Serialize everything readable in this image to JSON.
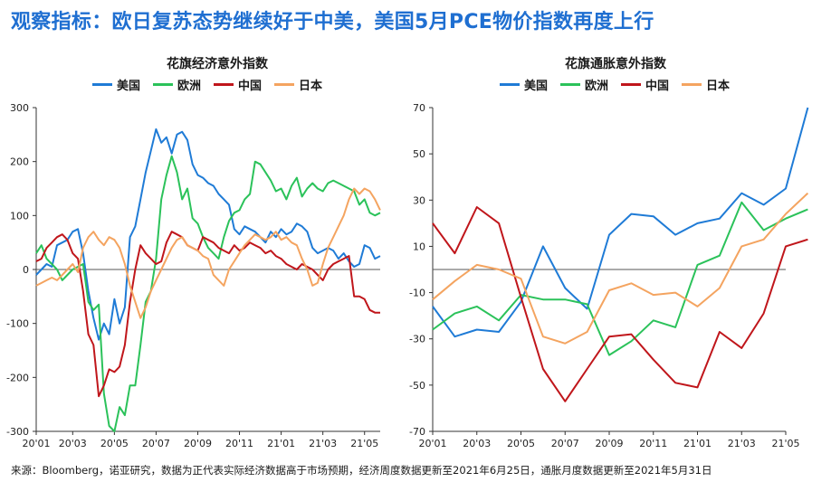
{
  "page": {
    "title": "观察指标：欧日复苏态势继续好于中美，美国5月PCE物价指数再度上行",
    "footnote": "来源：Bloomberg，诺亚研究，数据为正代表实际经济数据高于市场预期，经济周度数据更新至2021年6月25日，通胀月度数据更新至2021年5月31日"
  },
  "colors": {
    "us": "#1f7bd6",
    "eu": "#2bc25a",
    "cn": "#c0161b",
    "jp": "#f4a460"
  },
  "chart_data": [
    {
      "type": "line",
      "title": "花旗经济意外指数",
      "ylim": [
        -300,
        300
      ],
      "yticks": [
        300,
        200,
        100,
        0,
        -100,
        -200,
        -300
      ],
      "xlim": [
        0,
        66
      ],
      "xticks": [
        {
          "x": 0,
          "label": "20'01"
        },
        {
          "x": 7,
          "label": "20'03"
        },
        {
          "x": 15,
          "label": "20'05"
        },
        {
          "x": 23,
          "label": "20'07"
        },
        {
          "x": 31,
          "label": "20'09"
        },
        {
          "x": 39,
          "label": "20'11"
        },
        {
          "x": 47,
          "label": "21'01"
        },
        {
          "x": 55,
          "label": "21'03"
        },
        {
          "x": 63,
          "label": "21'05"
        }
      ],
      "x_unit_note": "weekly index since 2020-01",
      "series": [
        {
          "name": "美国",
          "key": "us",
          "x": [
            0,
            2,
            3,
            4,
            5,
            6,
            7,
            8,
            9,
            10,
            11,
            12,
            13,
            14,
            15,
            16,
            17,
            18,
            19,
            20,
            21,
            22,
            23,
            24,
            25,
            26,
            27,
            28,
            29,
            30,
            31,
            32,
            33,
            34,
            35,
            36,
            37,
            38,
            39,
            40,
            41,
            42,
            43,
            44,
            45,
            46,
            47,
            48,
            49,
            50,
            51,
            52,
            53,
            54,
            55,
            56,
            57,
            58,
            59,
            60,
            61,
            62,
            63,
            64,
            65,
            66
          ],
          "values": [
            -10,
            10,
            5,
            45,
            50,
            55,
            70,
            75,
            30,
            -40,
            -90,
            -130,
            -100,
            -120,
            -55,
            -100,
            -70,
            60,
            80,
            130,
            180,
            220,
            260,
            235,
            245,
            215,
            250,
            255,
            240,
            195,
            175,
            170,
            160,
            155,
            140,
            130,
            120,
            75,
            65,
            80,
            75,
            70,
            60,
            50,
            70,
            60,
            75,
            65,
            70,
            85,
            80,
            70,
            40,
            30,
            35,
            40,
            35,
            20,
            30,
            15,
            5,
            10,
            45,
            40,
            20,
            25
          ]
        },
        {
          "name": "欧洲",
          "key": "eu",
          "x": [
            0,
            1,
            2,
            3,
            4,
            5,
            6,
            7,
            8,
            9,
            10,
            11,
            12,
            13,
            14,
            15,
            16,
            17,
            18,
            19,
            20,
            21,
            22,
            23,
            24,
            25,
            26,
            27,
            28,
            29,
            30,
            31,
            32,
            33,
            34,
            35,
            36,
            37,
            38,
            39,
            40,
            41,
            42,
            43,
            44,
            45,
            46,
            47,
            48,
            49,
            50,
            51,
            52,
            53,
            54,
            55,
            56,
            57,
            58,
            59,
            60,
            61,
            62,
            63,
            64,
            65,
            66
          ],
          "values": [
            30,
            45,
            20,
            10,
            0,
            -20,
            -10,
            0,
            5,
            10,
            -60,
            -75,
            -65,
            -230,
            -290,
            -300,
            -255,
            -270,
            -215,
            -215,
            -140,
            -60,
            -40,
            20,
            130,
            175,
            210,
            180,
            130,
            150,
            95,
            85,
            60,
            40,
            30,
            20,
            60,
            90,
            105,
            110,
            130,
            140,
            200,
            195,
            180,
            165,
            145,
            150,
            130,
            155,
            170,
            135,
            150,
            160,
            150,
            145,
            160,
            165,
            160,
            155,
            150,
            145,
            120,
            130,
            105,
            100,
            105
          ]
        },
        {
          "name": "中国",
          "key": "cn",
          "x": [
            0,
            1,
            2,
            3,
            4,
            5,
            6,
            7,
            8,
            9,
            10,
            11,
            12,
            13,
            14,
            15,
            16,
            17,
            18,
            19,
            20,
            21,
            22,
            23,
            24,
            25,
            26,
            27,
            28,
            29,
            30,
            31,
            32,
            33,
            34,
            35,
            36,
            37,
            38,
            39,
            40,
            41,
            42,
            43,
            44,
            45,
            46,
            47,
            48,
            49,
            50,
            51,
            52,
            53,
            54,
            55,
            56,
            57,
            58,
            59,
            60,
            61,
            62,
            63,
            64,
            65,
            66
          ],
          "values": [
            15,
            20,
            40,
            50,
            60,
            65,
            55,
            30,
            20,
            -40,
            -120,
            -140,
            -235,
            -215,
            -185,
            -190,
            -180,
            -140,
            -60,
            0,
            45,
            30,
            20,
            10,
            15,
            50,
            70,
            65,
            60,
            45,
            40,
            35,
            60,
            55,
            50,
            40,
            35,
            30,
            45,
            35,
            40,
            50,
            45,
            40,
            30,
            35,
            25,
            20,
            10,
            5,
            0,
            10,
            5,
            0,
            -10,
            -20,
            0,
            10,
            15,
            20,
            25,
            -50,
            -50,
            -55,
            -75,
            -80,
            -80
          ]
        },
        {
          "name": "日本",
          "key": "jp",
          "x": [
            0,
            1,
            2,
            3,
            4,
            5,
            6,
            7,
            8,
            9,
            10,
            11,
            12,
            13,
            14,
            15,
            16,
            17,
            18,
            19,
            20,
            21,
            22,
            23,
            24,
            25,
            26,
            27,
            28,
            29,
            30,
            31,
            32,
            33,
            34,
            35,
            36,
            37,
            38,
            39,
            40,
            41,
            42,
            43,
            44,
            45,
            46,
            47,
            48,
            49,
            50,
            51,
            52,
            53,
            54,
            55,
            56,
            57,
            58,
            59,
            60,
            61,
            62,
            63,
            64,
            65,
            66
          ],
          "values": [
            -30,
            -25,
            -20,
            -15,
            -20,
            -10,
            0,
            10,
            -5,
            40,
            60,
            70,
            55,
            45,
            60,
            55,
            40,
            10,
            -30,
            -60,
            -90,
            -70,
            -40,
            -20,
            0,
            20,
            40,
            55,
            60,
            45,
            40,
            35,
            25,
            20,
            -10,
            -20,
            -30,
            0,
            15,
            30,
            45,
            55,
            65,
            60,
            55,
            60,
            70,
            55,
            60,
            50,
            45,
            20,
            0,
            -30,
            -25,
            10,
            40,
            60,
            80,
            100,
            130,
            150,
            140,
            150,
            145,
            130,
            110
          ]
        }
      ]
    },
    {
      "type": "line",
      "title": "花旗通胀意外指数",
      "ylim": [
        -70,
        70
      ],
      "yticks": [
        70,
        50,
        30,
        10,
        -10,
        -30,
        -50,
        -70
      ],
      "xlim": [
        0,
        16
      ],
      "xticks": [
        {
          "x": 0,
          "label": "20'01"
        },
        {
          "x": 2,
          "label": "20'03"
        },
        {
          "x": 4,
          "label": "20'05"
        },
        {
          "x": 6,
          "label": "20'07"
        },
        {
          "x": 8,
          "label": "20'09"
        },
        {
          "x": 10,
          "label": "20'11"
        },
        {
          "x": 12,
          "label": "21'01"
        },
        {
          "x": 14,
          "label": "21'03"
        },
        {
          "x": 16,
          "label": "21'05"
        }
      ],
      "x_unit_note": "monthly index since 2020-01",
      "series": [
        {
          "name": "美国",
          "key": "us",
          "x": [
            0,
            1,
            2,
            3,
            4,
            5,
            6,
            7,
            8,
            9,
            10,
            11,
            12,
            13,
            14,
            15,
            16,
            17
          ],
          "values": [
            -16,
            -29,
            -26,
            -27,
            -14,
            10,
            -8,
            -17,
            15,
            24,
            23,
            15,
            20,
            22,
            33,
            28,
            35,
            70
          ]
        },
        {
          "name": "欧洲",
          "key": "eu",
          "x": [
            0,
            1,
            2,
            3,
            4,
            5,
            6,
            7,
            8,
            9,
            10,
            11,
            12,
            13,
            14,
            15,
            16,
            17
          ],
          "values": [
            -26,
            -19,
            -16,
            -22,
            -11,
            -13,
            -13,
            -15,
            -37,
            -31,
            -22,
            -25,
            2,
            6,
            29,
            17,
            22,
            26
          ]
        },
        {
          "name": "中国",
          "key": "cn",
          "x": [
            0,
            1,
            2,
            3,
            4,
            5,
            6,
            7,
            8,
            9,
            10,
            11,
            12,
            13,
            14,
            15,
            16,
            17
          ],
          "values": [
            20,
            7,
            27,
            20,
            -12,
            -43,
            -57,
            -43,
            -29,
            -28,
            -39,
            -49,
            -51,
            -27,
            -34,
            -19,
            10,
            13
          ]
        },
        {
          "name": "日本",
          "key": "jp",
          "x": [
            0,
            1,
            2,
            3,
            4,
            5,
            6,
            7,
            8,
            9,
            10,
            11,
            12,
            13,
            14,
            15,
            16,
            17
          ],
          "values": [
            -13,
            -5,
            2,
            0,
            -4,
            -29,
            -32,
            -27,
            -9,
            -6,
            -11,
            -10,
            -16,
            -8,
            10,
            13,
            24,
            33
          ]
        }
      ]
    }
  ]
}
